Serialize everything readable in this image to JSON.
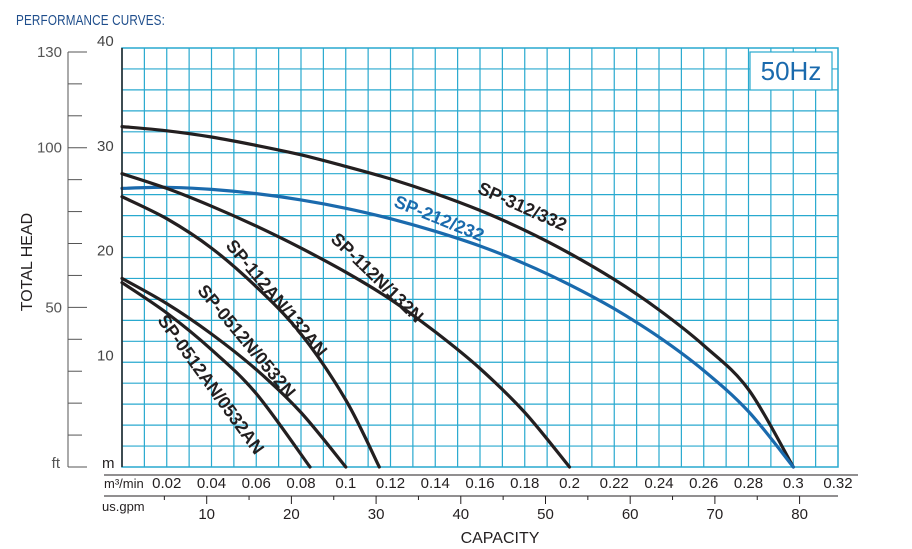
{
  "page_title": "PERFORMANCE CURVES:",
  "chart_data": {
    "type": "line",
    "title": "PERFORMANCE CURVES:",
    "frequency_label": "50Hz",
    "xlabel": "CAPACITY",
    "ylabel": "TOTAL HEAD",
    "x_unit_primary": "m³/min",
    "x_unit_secondary": "us.gpm",
    "y_unit_primary": "m",
    "y_unit_secondary": "ft",
    "xlim": [
      0,
      0.32
    ],
    "ylim": [
      0,
      40
    ],
    "grid": true,
    "x_ticks": [
      0.02,
      0.04,
      0.06,
      0.08,
      0.1,
      0.12,
      0.14,
      0.16,
      0.18,
      0.2,
      0.22,
      0.24,
      0.26,
      0.28,
      0.3,
      0.32
    ],
    "x_tick_labels": [
      "0.02",
      "0.04",
      "0.06",
      "0.08",
      "0.1",
      "0.12",
      "0.14",
      "0.16",
      "0.18",
      "0.2",
      "0.22",
      "0.24",
      "0.26",
      "0.28",
      "0.3",
      "0.32"
    ],
    "y_ticks": [
      10,
      20,
      30,
      40
    ],
    "y_tick_labels": [
      "10",
      "20",
      "30",
      "40"
    ],
    "gpm_ticks": [
      10,
      20,
      30,
      40,
      50,
      60,
      70,
      80
    ],
    "gpm_tick_labels": [
      "10",
      "20",
      "30",
      "40",
      "50",
      "60",
      "70",
      "80"
    ],
    "ft_ticks": [
      50,
      100,
      130
    ],
    "ft_tick_labels": [
      "50",
      "100",
      "130"
    ],
    "series": [
      {
        "name": "SP-312/332",
        "color": "#231f20",
        "x": [
          0,
          0.02,
          0.04,
          0.06,
          0.08,
          0.1,
          0.12,
          0.14,
          0.16,
          0.18,
          0.2,
          0.22,
          0.24,
          0.26,
          0.28,
          0.3
        ],
        "y": [
          32.5,
          32.1,
          31.5,
          30.7,
          29.8,
          28.7,
          27.5,
          26.1,
          24.5,
          22.6,
          20.4,
          17.9,
          15.0,
          11.6,
          7.4,
          0
        ]
      },
      {
        "name": "SP-212/232",
        "color": "#1a6aad",
        "x": [
          0,
          0.02,
          0.04,
          0.06,
          0.08,
          0.1,
          0.12,
          0.14,
          0.16,
          0.18,
          0.2,
          0.22,
          0.24,
          0.26,
          0.28,
          0.3
        ],
        "y": [
          26.6,
          26.7,
          26.5,
          26.1,
          25.5,
          24.7,
          23.7,
          22.5,
          21.1,
          19.4,
          17.4,
          15.1,
          12.4,
          9.2,
          5.3,
          0
        ]
      },
      {
        "name": "SP-112N/132N",
        "color": "#231f20",
        "x": [
          0,
          0.02,
          0.04,
          0.06,
          0.08,
          0.1,
          0.12,
          0.14,
          0.16,
          0.18,
          0.2
        ],
        "y": [
          28.0,
          26.6,
          24.9,
          23.0,
          20.9,
          18.6,
          16.0,
          12.9,
          9.4,
          5.2,
          0
        ]
      },
      {
        "name": "SP-112AN/132AN",
        "color": "#231f20",
        "x": [
          0,
          0.02,
          0.04,
          0.06,
          0.08,
          0.1,
          0.115
        ],
        "y": [
          25.8,
          23.7,
          20.9,
          17.2,
          12.7,
          6.4,
          0
        ]
      },
      {
        "name": "SP-0512N/0532N",
        "color": "#231f20",
        "x": [
          0,
          0.02,
          0.04,
          0.06,
          0.08,
          0.1
        ],
        "y": [
          18.0,
          15.6,
          12.7,
          9.3,
          5.2,
          0
        ]
      },
      {
        "name": "SP-0512AN/0532AN",
        "color": "#231f20",
        "x": [
          0,
          0.02,
          0.04,
          0.06,
          0.084
        ],
        "y": [
          17.6,
          14.7,
          11.2,
          7.0,
          0
        ]
      }
    ]
  }
}
